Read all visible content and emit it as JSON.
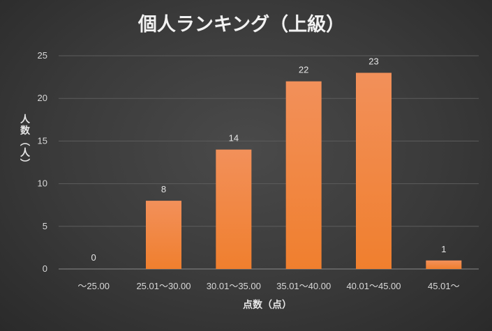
{
  "chart_data": {
    "type": "bar",
    "title": "個人ランキング（上級）",
    "xlabel": "点数（点）",
    "ylabel": "人数（人）",
    "categories": [
      "～25.00",
      "25.01～30.00",
      "30.01～35.00",
      "35.01～40.00",
      "40.01～45.00",
      "45.01～"
    ],
    "values": [
      0,
      8,
      14,
      22,
      23,
      1
    ],
    "ylim": [
      0,
      25
    ],
    "yticks": [
      0,
      5,
      10,
      15,
      20,
      25
    ],
    "grid": true,
    "bar_color": "#f07f2e",
    "bar_color_top": "#f2905a"
  }
}
